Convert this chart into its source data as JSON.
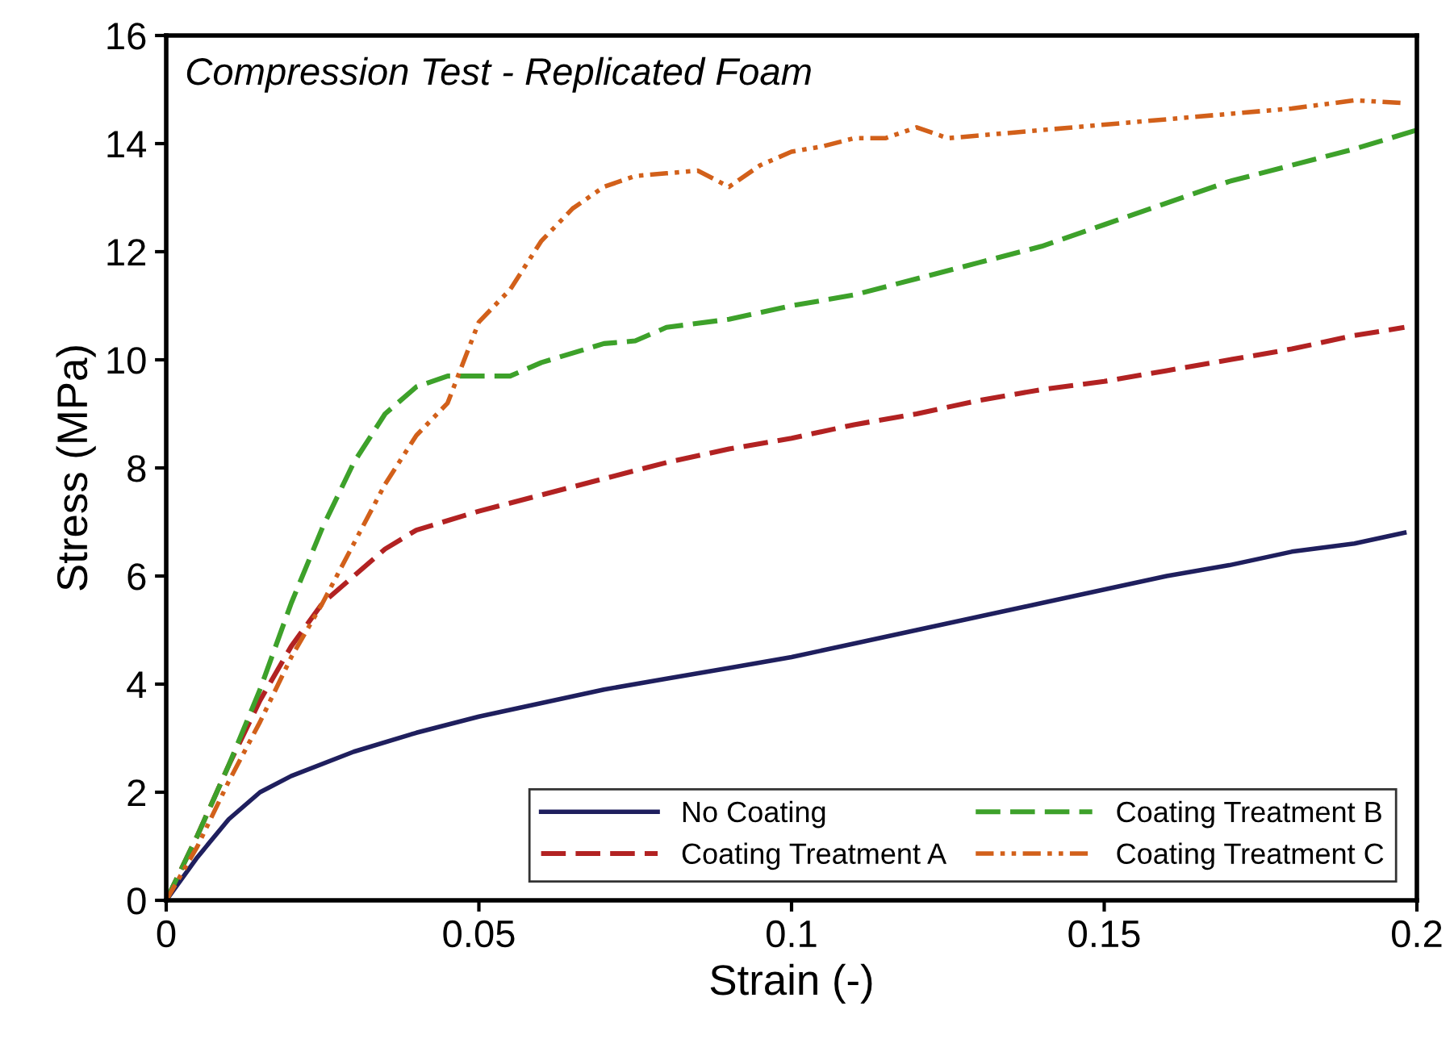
{
  "chart_data": {
    "type": "line",
    "title": "Compression Test - Replicated Foam",
    "xlabel": "Strain (-)",
    "ylabel": "Stress (MPa)",
    "xlim": [
      0,
      0.2
    ],
    "ylim": [
      0,
      16
    ],
    "xticks": [
      0,
      0.05,
      0.1,
      0.15,
      0.2
    ],
    "yticks": [
      0,
      2,
      4,
      6,
      8,
      10,
      12,
      14,
      16
    ],
    "grid": false,
    "legend": "bottom right",
    "series": [
      {
        "name": "No Coating",
        "color": "#1f1f5e",
        "line_style": "solid",
        "x": [
          0,
          0.005,
          0.01,
          0.015,
          0.02,
          0.03,
          0.04,
          0.05,
          0.06,
          0.07,
          0.08,
          0.09,
          0.1,
          0.11,
          0.12,
          0.13,
          0.14,
          0.15,
          0.16,
          0.17,
          0.18,
          0.19,
          0.198
        ],
        "values": [
          0,
          0.8,
          1.5,
          2.0,
          2.3,
          2.75,
          3.1,
          3.4,
          3.65,
          3.9,
          4.1,
          4.3,
          4.5,
          4.75,
          5.0,
          5.25,
          5.5,
          5.75,
          6.0,
          6.2,
          6.45,
          6.6,
          6.8
        ]
      },
      {
        "name": "Coating Treatment A",
        "color": "#b22222",
        "line_style": "dashed",
        "x": [
          0,
          0.005,
          0.01,
          0.015,
          0.02,
          0.025,
          0.03,
          0.035,
          0.04,
          0.05,
          0.06,
          0.07,
          0.08,
          0.09,
          0.1,
          0.11,
          0.12,
          0.13,
          0.14,
          0.15,
          0.16,
          0.17,
          0.18,
          0.19,
          0.198
        ],
        "values": [
          0,
          1.2,
          2.5,
          3.7,
          4.7,
          5.5,
          6.0,
          6.5,
          6.85,
          7.2,
          7.5,
          7.8,
          8.1,
          8.35,
          8.55,
          8.8,
          9.0,
          9.25,
          9.45,
          9.6,
          9.8,
          10.0,
          10.2,
          10.45,
          10.6
        ]
      },
      {
        "name": "Coating Treatment B",
        "color": "#3da12a",
        "line_style": "dashed",
        "x": [
          0,
          0.005,
          0.01,
          0.015,
          0.02,
          0.025,
          0.03,
          0.035,
          0.04,
          0.045,
          0.05,
          0.055,
          0.06,
          0.07,
          0.075,
          0.08,
          0.09,
          0.1,
          0.11,
          0.12,
          0.13,
          0.14,
          0.15,
          0.16,
          0.17,
          0.18,
          0.19,
          0.2
        ],
        "values": [
          0,
          1.2,
          2.5,
          3.9,
          5.5,
          6.9,
          8.1,
          9.0,
          9.5,
          9.7,
          9.7,
          9.7,
          9.95,
          10.3,
          10.35,
          10.6,
          10.75,
          11.0,
          11.2,
          11.5,
          11.8,
          12.1,
          12.5,
          12.9,
          13.3,
          13.6,
          13.9,
          14.25
        ]
      },
      {
        "name": "Coating Treatment C",
        "color": "#d2601a",
        "line_style": "dotted",
        "x": [
          0,
          0.005,
          0.01,
          0.015,
          0.02,
          0.025,
          0.03,
          0.035,
          0.04,
          0.045,
          0.05,
          0.055,
          0.06,
          0.065,
          0.07,
          0.075,
          0.08,
          0.085,
          0.09,
          0.095,
          0.1,
          0.105,
          0.11,
          0.115,
          0.12,
          0.125,
          0.13,
          0.14,
          0.15,
          0.16,
          0.17,
          0.18,
          0.19,
          0.198
        ],
        "values": [
          0,
          1.0,
          2.2,
          3.3,
          4.5,
          5.5,
          6.6,
          7.7,
          8.6,
          9.2,
          10.7,
          11.3,
          12.2,
          12.8,
          13.2,
          13.4,
          13.45,
          13.5,
          13.2,
          13.6,
          13.85,
          13.95,
          14.1,
          14.1,
          14.3,
          14.1,
          14.15,
          14.25,
          14.35,
          14.45,
          14.55,
          14.65,
          14.8,
          14.75
        ]
      }
    ]
  }
}
